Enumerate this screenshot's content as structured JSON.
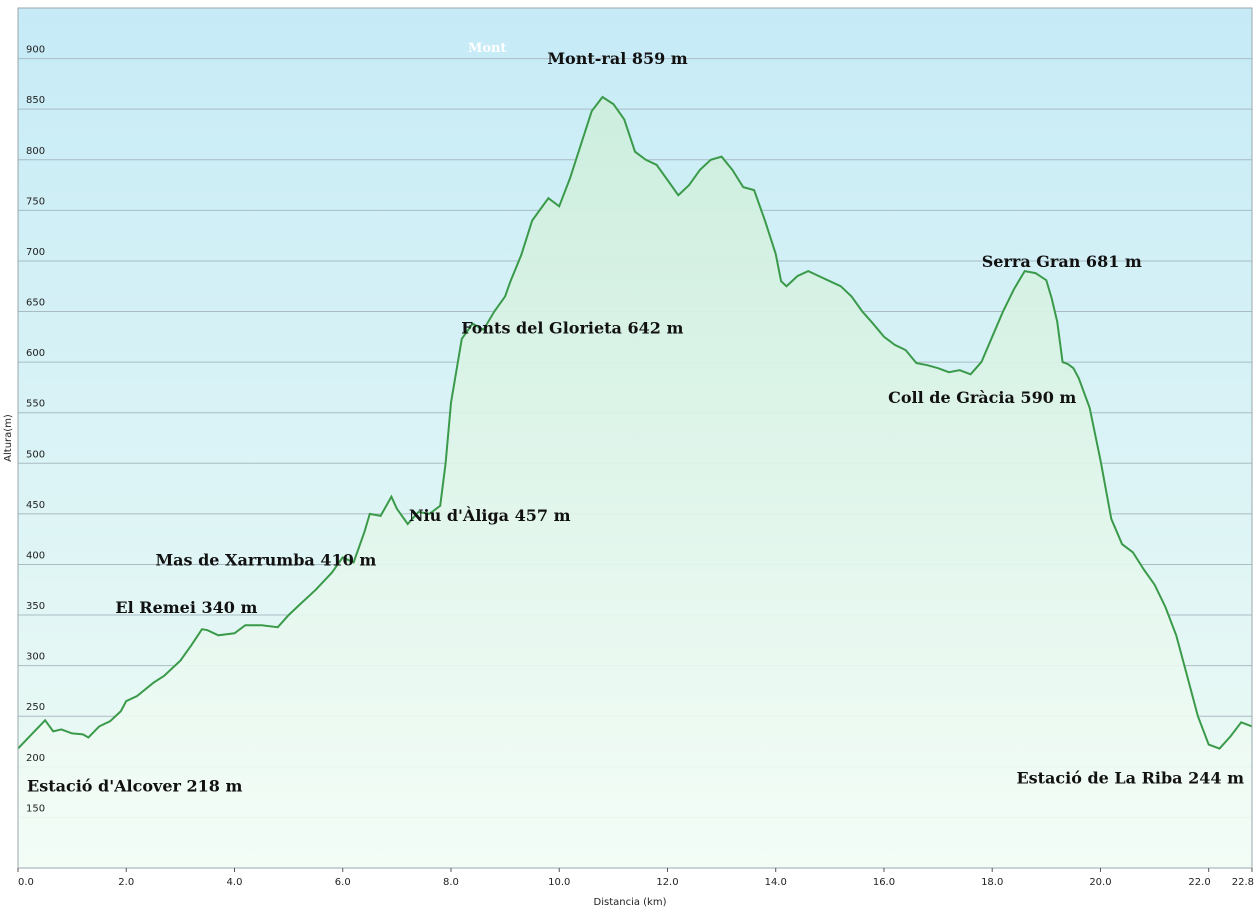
{
  "chart_data": {
    "type": "area",
    "xlabel": "Distancia  (km)",
    "ylabel": "Altura(m)",
    "xlim": [
      0,
      22.8
    ],
    "ylim": [
      100,
      950
    ],
    "x_ticks": [
      "0.0",
      "2.0",
      "4.0",
      "6.0",
      "8.0",
      "10.0",
      "12.0",
      "14.0",
      "16.0",
      "18.0",
      "20.0",
      "22.0",
      "22.8"
    ],
    "y_ticks": [
      "900",
      "850",
      "800",
      "750",
      "700",
      "650",
      "600",
      "550",
      "500",
      "450",
      "400",
      "350",
      "300",
      "250",
      "200",
      "150"
    ],
    "grid": true,
    "line_color": "#3a9a4a",
    "fill_color": "#d7f0e4",
    "background_top": "#c6ebf7",
    "background_bottom": "#eefbf4",
    "faint_label": "Mont",
    "annotations": [
      {
        "text": "Mont-ral 859 m",
        "x": 11.0,
        "y": 859
      },
      {
        "text": "Serra Gran 681 m",
        "x": 19.1,
        "y": 681
      },
      {
        "text": "Fonts del Glorieta 642 m",
        "x": 8.8,
        "y": 642
      },
      {
        "text": "Coll de Gràcia 590 m",
        "x": 17.5,
        "y": 590
      },
      {
        "text": "Mas de Xarrumba 410 m",
        "x": 6.9,
        "y": 410
      },
      {
        "text": "Niu d'Àliga 457 m",
        "x": 7.5,
        "y": 457
      },
      {
        "text": "El Remei 340 m",
        "x": 3.5,
        "y": 340
      },
      {
        "text": "Estació d'Alcover 218 m",
        "x": 0.0,
        "y": 218
      },
      {
        "text": "Estació de La Riba 244 m",
        "x": 22.8,
        "y": 244
      }
    ],
    "series": [
      {
        "x": [
          0.0,
          0.25,
          0.5,
          0.65,
          0.8,
          1.0,
          1.2,
          1.3,
          1.5,
          1.7,
          1.9,
          2.0,
          2.2,
          2.5,
          2.7,
          3.0,
          3.2,
          3.4,
          3.5,
          3.7,
          4.0,
          4.2,
          4.5,
          4.8,
          5.0,
          5.2,
          5.5,
          5.8,
          6.0,
          6.2,
          6.4,
          6.5,
          6.7,
          6.9,
          7.0,
          7.2,
          7.4,
          7.6,
          7.8,
          7.9,
          8.0,
          8.2,
          8.4,
          8.6,
          8.8,
          9.0,
          9.1,
          9.3,
          9.5,
          9.8,
          10.0,
          10.2,
          10.4,
          10.6,
          10.8,
          11.0,
          11.2,
          11.4,
          11.6,
          11.8,
          12.0,
          12.2,
          12.4,
          12.6,
          12.8,
          13.0,
          13.2,
          13.4,
          13.6,
          13.8,
          14.0,
          14.1,
          14.2,
          14.4,
          14.6,
          14.8,
          15.0,
          15.2,
          15.4,
          15.6,
          15.8,
          16.0,
          16.2,
          16.4,
          16.6,
          16.8,
          17.0,
          17.2,
          17.4,
          17.6,
          17.8,
          18.0,
          18.2,
          18.4,
          18.6,
          18.8,
          19.0,
          19.1,
          19.2,
          19.3,
          19.4,
          19.5,
          19.6,
          19.8,
          20.0,
          20.2,
          20.4,
          20.6,
          20.8,
          21.0,
          21.2,
          21.4,
          21.6,
          21.8,
          22.0,
          22.2,
          22.4,
          22.6,
          22.8
        ],
        "y": [
          218,
          232,
          246,
          235,
          237,
          233,
          232,
          229,
          240,
          245,
          255,
          265,
          270,
          283,
          290,
          305,
          320,
          336,
          335,
          330,
          332,
          340,
          340,
          338,
          350,
          360,
          375,
          392,
          407,
          402,
          432,
          450,
          448,
          467,
          455,
          440,
          452,
          450,
          458,
          500,
          560,
          623,
          638,
          632,
          650,
          665,
          680,
          706,
          740,
          762,
          754,
          782,
          815,
          848,
          862,
          855,
          840,
          808,
          800,
          795,
          780,
          765,
          775,
          790,
          800,
          803,
          790,
          773,
          770,
          740,
          707,
          680,
          675,
          685,
          690,
          685,
          680,
          675,
          665,
          650,
          638,
          625,
          617,
          612,
          599,
          597,
          594,
          590,
          592,
          588,
          600,
          625,
          650,
          672,
          690,
          688,
          681,
          663,
          640,
          600,
          598,
          594,
          584,
          555,
          503,
          445,
          420,
          412,
          395,
          380,
          358,
          330,
          290,
          250,
          222,
          218,
          230,
          244,
          240
        ]
      }
    ]
  }
}
